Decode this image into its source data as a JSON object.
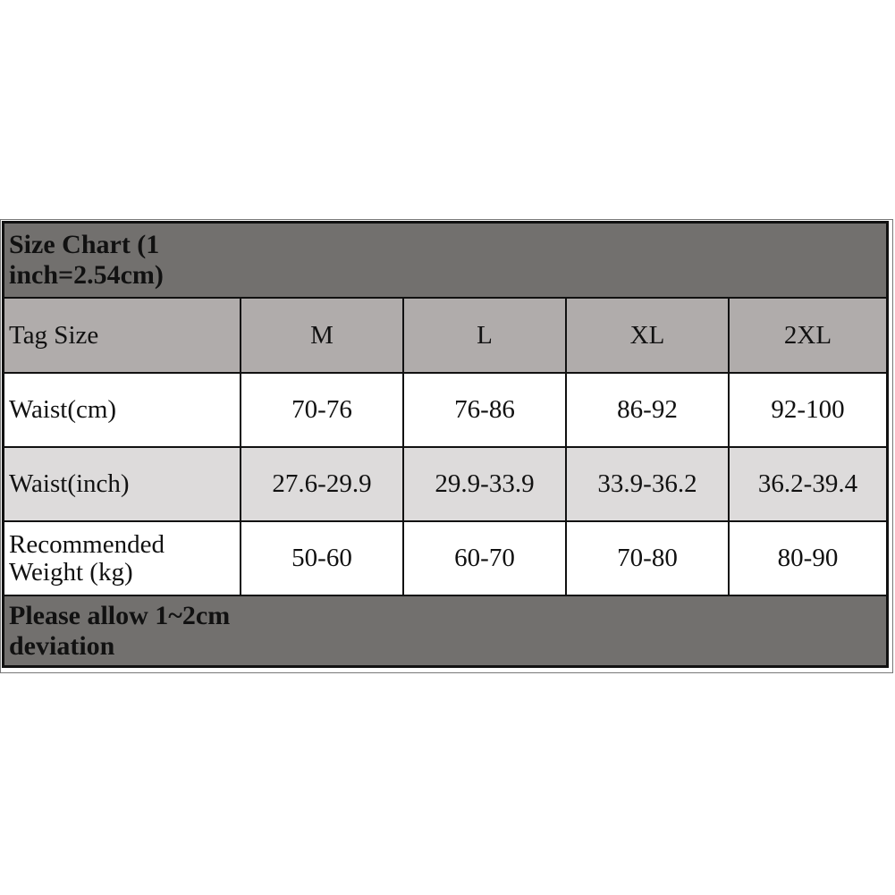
{
  "title": "Size Chart (1 inch=2.54cm)",
  "header": {
    "label": "Tag Size",
    "sizes": [
      "M",
      "L",
      "XL",
      "2XL"
    ]
  },
  "rows": [
    {
      "label": "Waist(cm)",
      "values": [
        "70-76",
        "76-86",
        "86-92",
        "92-100"
      ]
    },
    {
      "label": "Waist(inch)",
      "values": [
        "27.6-29.9",
        "29.9-33.9",
        "33.9-36.2",
        "36.2-39.4"
      ]
    },
    {
      "label_line1": "Recommended",
      "label_line2": "Weight (kg)",
      "values": [
        "50-60",
        "60-70",
        "70-80",
        "80-90"
      ]
    }
  ],
  "footer": "Please allow 1~2cm deviation",
  "colors": {
    "title_bg": "#72706e",
    "header_bg": "#b0acab",
    "alt_row_bg": "#dddbdb"
  }
}
